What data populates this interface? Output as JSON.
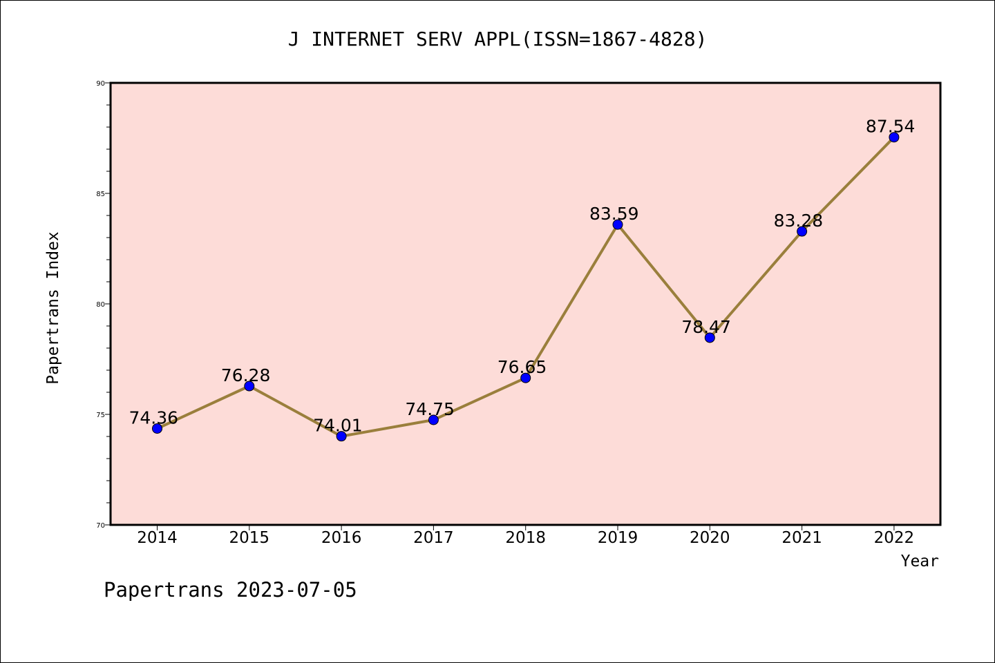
{
  "footer": "Papertrans 2023-07-05",
  "chart_data": {
    "type": "line",
    "title": "J INTERNET SERV APPL(ISSN=1867-4828)",
    "xlabel": "Year",
    "ylabel": "Papertrans Index",
    "categories": [
      "2014",
      "2015",
      "2016",
      "2017",
      "2018",
      "2019",
      "2020",
      "2021",
      "2022"
    ],
    "values": [
      74.36,
      76.28,
      74.01,
      74.75,
      76.65,
      83.59,
      78.47,
      83.28,
      87.54
    ],
    "data_labels": [
      "74.36",
      "76.28",
      "74.01",
      "74.75",
      "76.65",
      "83.59",
      "78.47",
      "83.28",
      "87.54"
    ],
    "ylim": [
      70,
      90
    ],
    "yticks": [
      70,
      75,
      80,
      85,
      90
    ],
    "grid": false,
    "colors": {
      "plot_background": "#fddcd8",
      "line": "#9a7f3c",
      "marker": "#0000ff"
    }
  }
}
